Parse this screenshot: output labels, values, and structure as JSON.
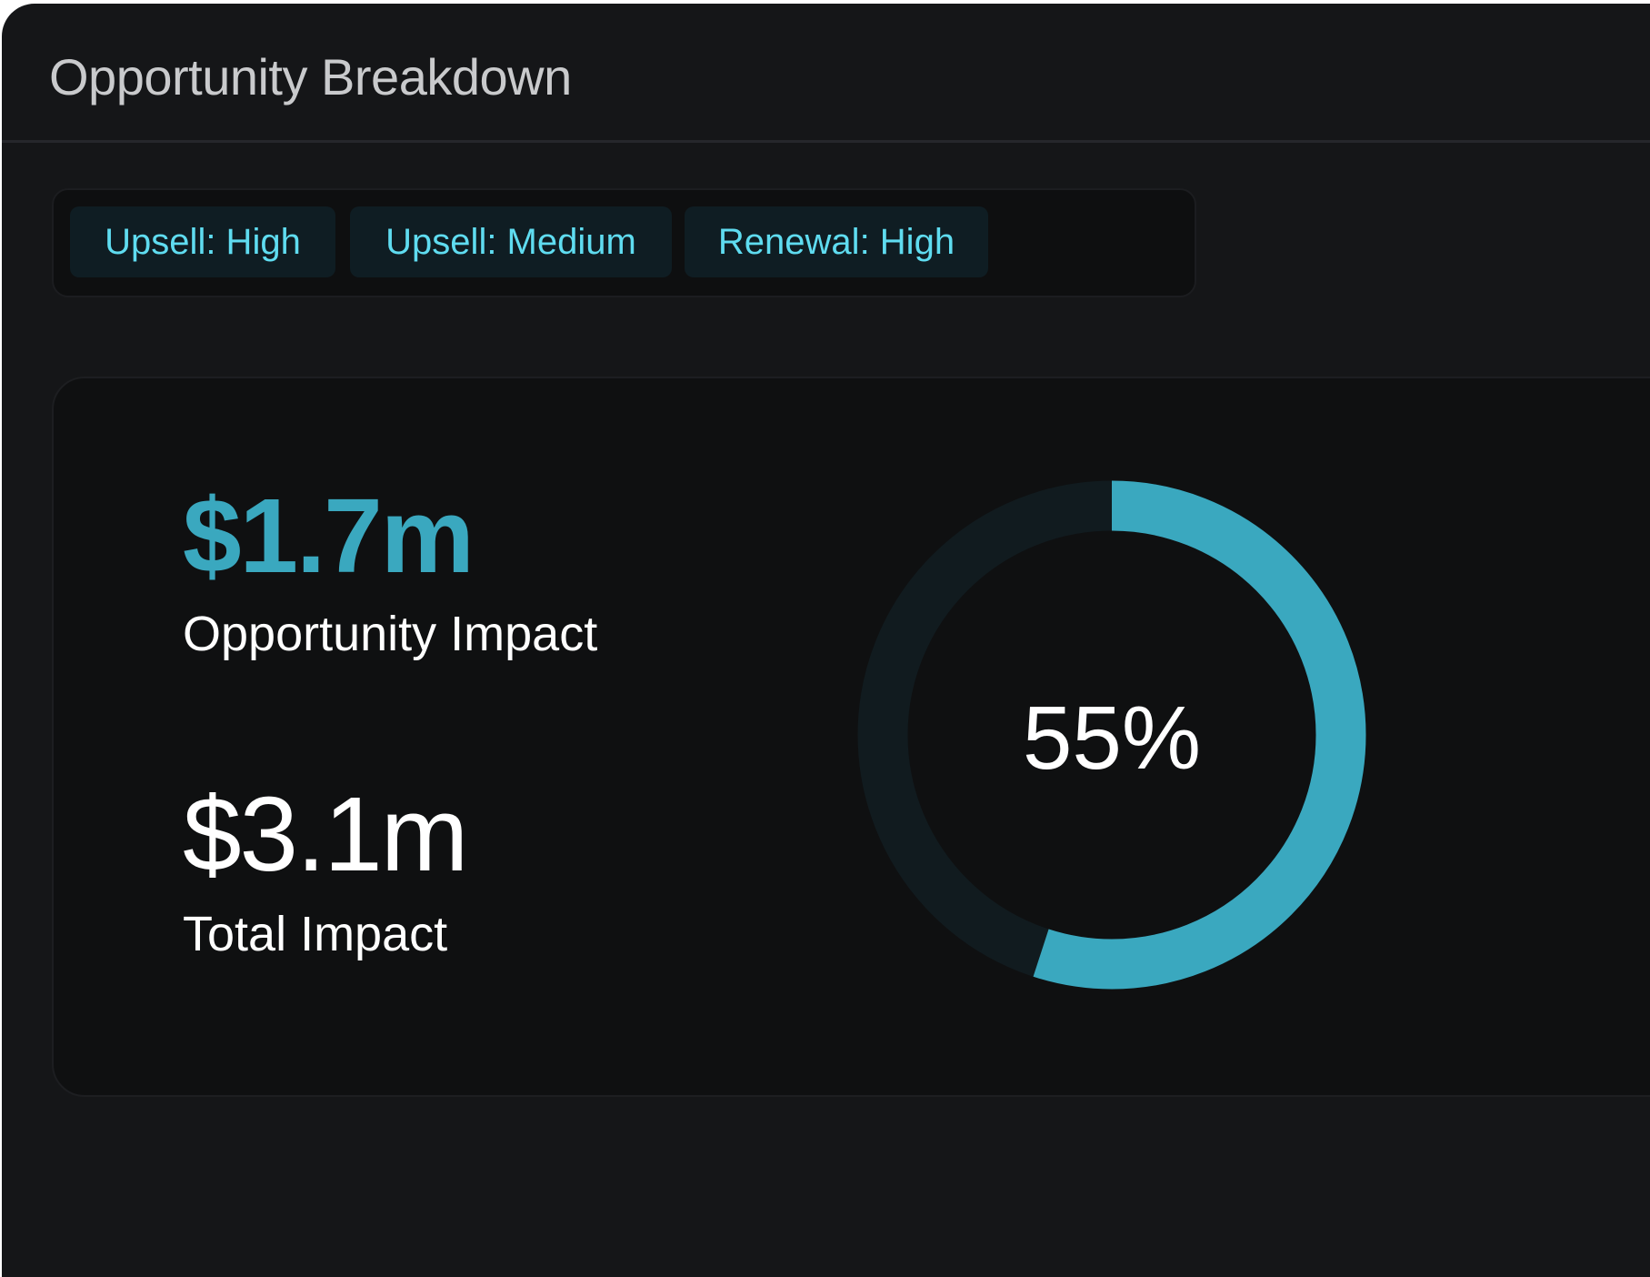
{
  "header": {
    "title": "Opportunity Breakdown"
  },
  "tags": [
    {
      "label": "Upsell: High"
    },
    {
      "label": "Upsell: Medium"
    },
    {
      "label": "Renewal: High"
    }
  ],
  "metrics": {
    "opportunity": {
      "value": "$1.7m",
      "label": "Opportunity Impact"
    },
    "total": {
      "value": "$3.1m",
      "label": "Total Impact"
    }
  },
  "donut": {
    "percent_label": "55%",
    "fraction": 0.55,
    "colors": {
      "fill": "#3aa8bf",
      "track": "#111b1f"
    }
  },
  "colors": {
    "accent": "#3aa8bf",
    "tag_text": "#5fdcf0",
    "background": "#151618"
  }
}
